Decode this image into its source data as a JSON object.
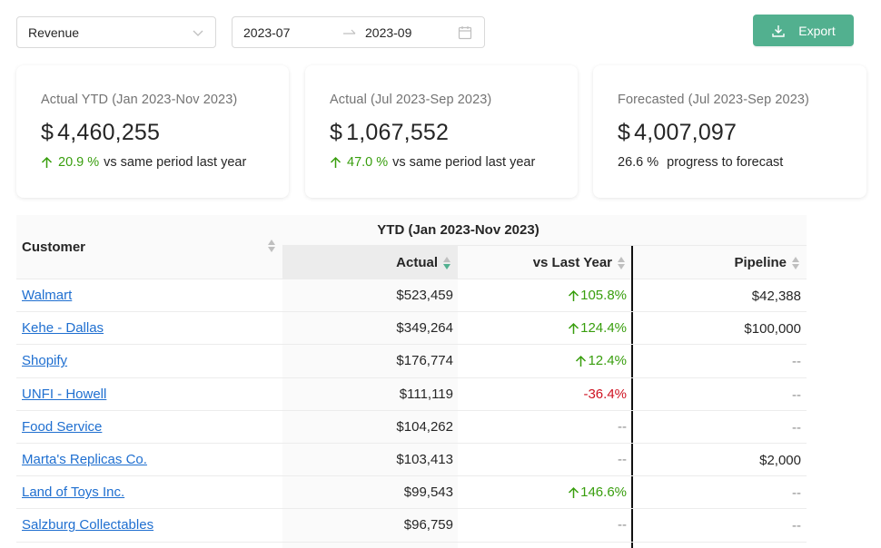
{
  "toolbar": {
    "metric_select": "Revenue",
    "date_from": "2023-07",
    "date_to": "2023-09",
    "export_label": "Export"
  },
  "cards": [
    {
      "label": "Actual YTD (Jan 2023-Nov 2023)",
      "currency": "$",
      "value": "4,460,255",
      "change": "20.9 %",
      "suffix": "vs same period last year",
      "trend": "up"
    },
    {
      "label": "Actual (Jul 2023-Sep 2023)",
      "currency": "$",
      "value": "1,067,552",
      "change": "47.0 %",
      "suffix": "vs same period last year",
      "trend": "up"
    },
    {
      "label": "Forecasted (Jul 2023-Sep 2023)",
      "currency": "$",
      "value": "4,007,097",
      "change": "26.6 %",
      "suffix": "progress to forecast",
      "trend": "none"
    }
  ],
  "table": {
    "group_header": "YTD (Jan 2023-Nov 2023)",
    "columns": {
      "customer": "Customer",
      "actual": "Actual",
      "vs_last_year": "vs Last Year",
      "pipeline": "Pipeline"
    },
    "rows": [
      {
        "customer": "Walmart",
        "actual": "$523,459",
        "vs": "105.8%",
        "trend": "up",
        "pipeline": "$42,388"
      },
      {
        "customer": "Kehe - Dallas",
        "actual": "$349,264",
        "vs": "124.4%",
        "trend": "up",
        "pipeline": "$100,000"
      },
      {
        "customer": "Shopify",
        "actual": "$176,774",
        "vs": "12.4%",
        "trend": "up",
        "pipeline": "--"
      },
      {
        "customer": "UNFI - Howell",
        "actual": "$111,119",
        "vs": "-36.4%",
        "trend": "down",
        "pipeline": "--"
      },
      {
        "customer": "Food Service",
        "actual": "$104,262",
        "vs": "--",
        "trend": "none",
        "pipeline": "--"
      },
      {
        "customer": "Marta's Replicas Co.",
        "actual": "$103,413",
        "vs": "--",
        "trend": "none",
        "pipeline": "$2,000"
      },
      {
        "customer": "Land of Toys Inc.",
        "actual": "$99,543",
        "vs": "146.6%",
        "trend": "up",
        "pipeline": "--"
      },
      {
        "customer": "Salzburg Collectables",
        "actual": "$96,759",
        "vs": "--",
        "trend": "none",
        "pipeline": "--"
      }
    ]
  },
  "colors": {
    "accent": "#52b08f",
    "positive": "#389e0d",
    "negative": "#cf1322",
    "link": "#1f6fd0"
  },
  "icons": {
    "select": "chevron-down-icon",
    "range": "arrow-right-icon",
    "calendar": "calendar-icon",
    "export": "download-icon",
    "trend_up": "arrow-up-icon"
  }
}
